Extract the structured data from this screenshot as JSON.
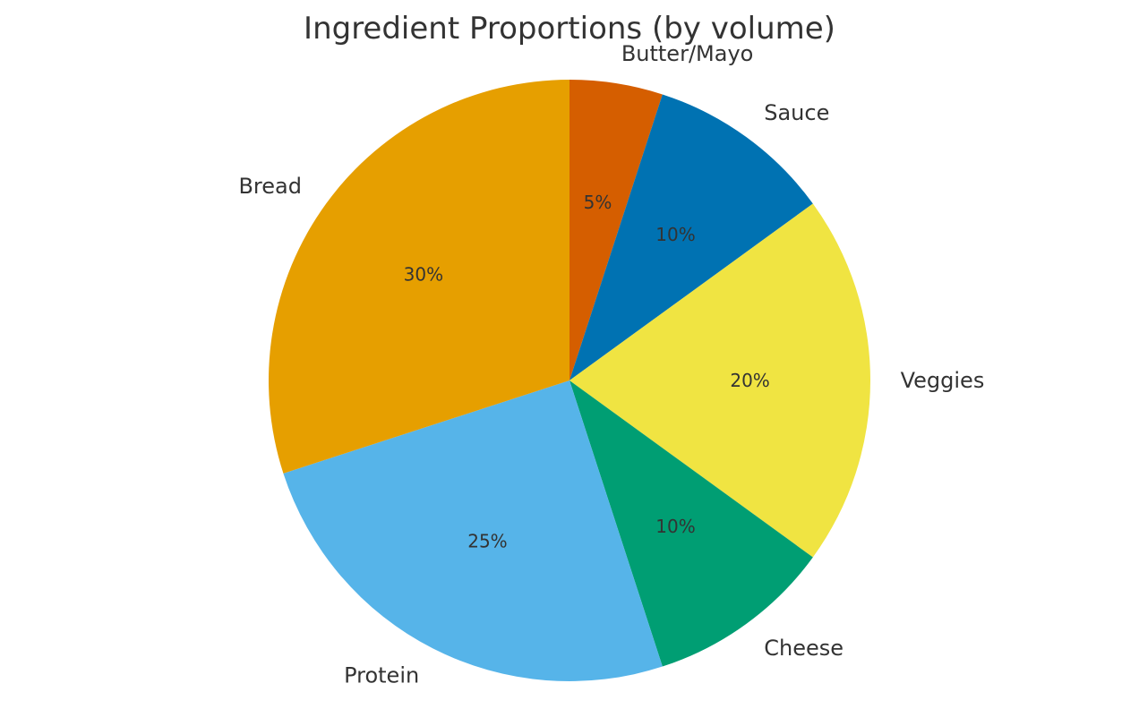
{
  "chart_data": {
    "type": "pie",
    "title": "Ingredient Proportions (by volume)",
    "categories": [
      "Butter/Mayo",
      "Sauce",
      "Veggies",
      "Cheese",
      "Protein",
      "Bread"
    ],
    "values": [
      5,
      10,
      20,
      10,
      25,
      30
    ],
    "value_labels": [
      "5%",
      "10%",
      "20%",
      "10%",
      "25%",
      "30%"
    ],
    "colors": [
      "#d55e00",
      "#0072b2",
      "#f0e442",
      "#009e73",
      "#56b4e9",
      "#e69f00"
    ],
    "start_angle": 90,
    "direction": "clockwise",
    "legend": "none (labels outside slices)"
  }
}
